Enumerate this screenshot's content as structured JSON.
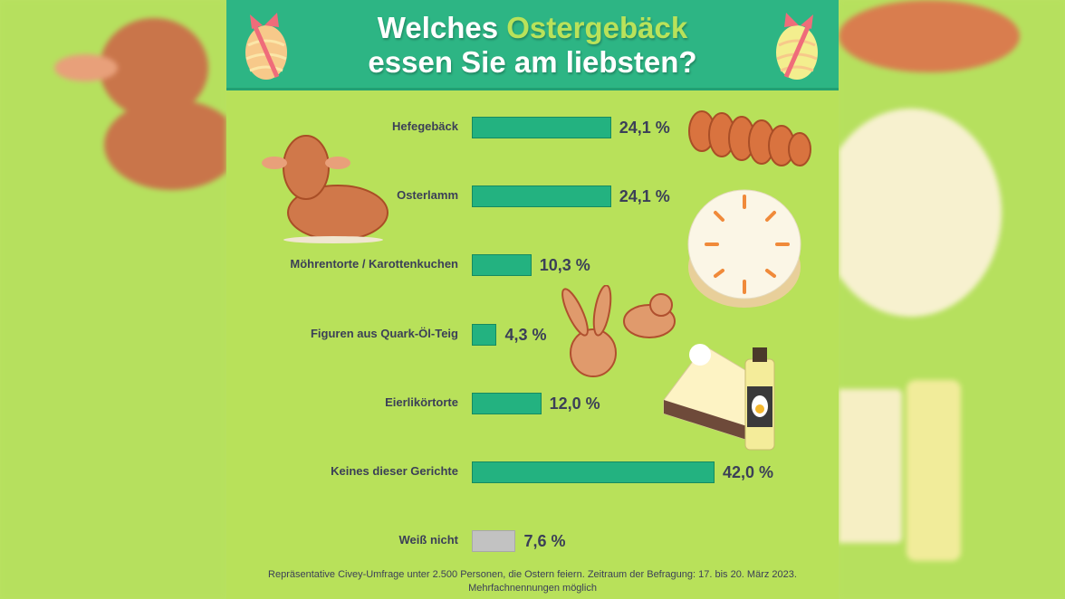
{
  "header": {
    "title_part1": "Welches ",
    "title_highlight": "Ostergebäck",
    "title_line2": "essen Sie am liebsten?"
  },
  "colors": {
    "header_bg": "#2db584",
    "background": "#b8e15a",
    "bar": "#23b280",
    "bar_neutral": "#c2c2c2",
    "highlight": "#b9e25a",
    "text": "#3b3f57"
  },
  "chart_data": {
    "type": "bar",
    "orientation": "horizontal",
    "title": "Welches Ostergebäck essen Sie am liebsten?",
    "categories": [
      "Hefegebäck",
      "Osterlamm",
      "Möhrentorte / Karottenkuchen",
      "Figuren aus Quark-Öl-Teig",
      "Eierlikörtorte",
      "Keines dieser Gerichte",
      "Weiß nicht"
    ],
    "values": [
      24.1,
      24.1,
      10.3,
      4.3,
      12.0,
      42.0,
      7.6
    ],
    "value_labels": [
      "24,1 %",
      "24,1 %",
      "10,3 %",
      "4,3 %",
      "12,0 %",
      "42,0 %",
      "7,6 %"
    ],
    "unit": "%",
    "grid": false,
    "legend": "none"
  },
  "footer": {
    "line1": "Repräsentative Civey-Umfrage unter 2.500 Personen, die Ostern feiern. Zeitraum der Befragung: 17. bis 20. März 2023.",
    "line2": "Mehrfachnennungen möglich"
  }
}
